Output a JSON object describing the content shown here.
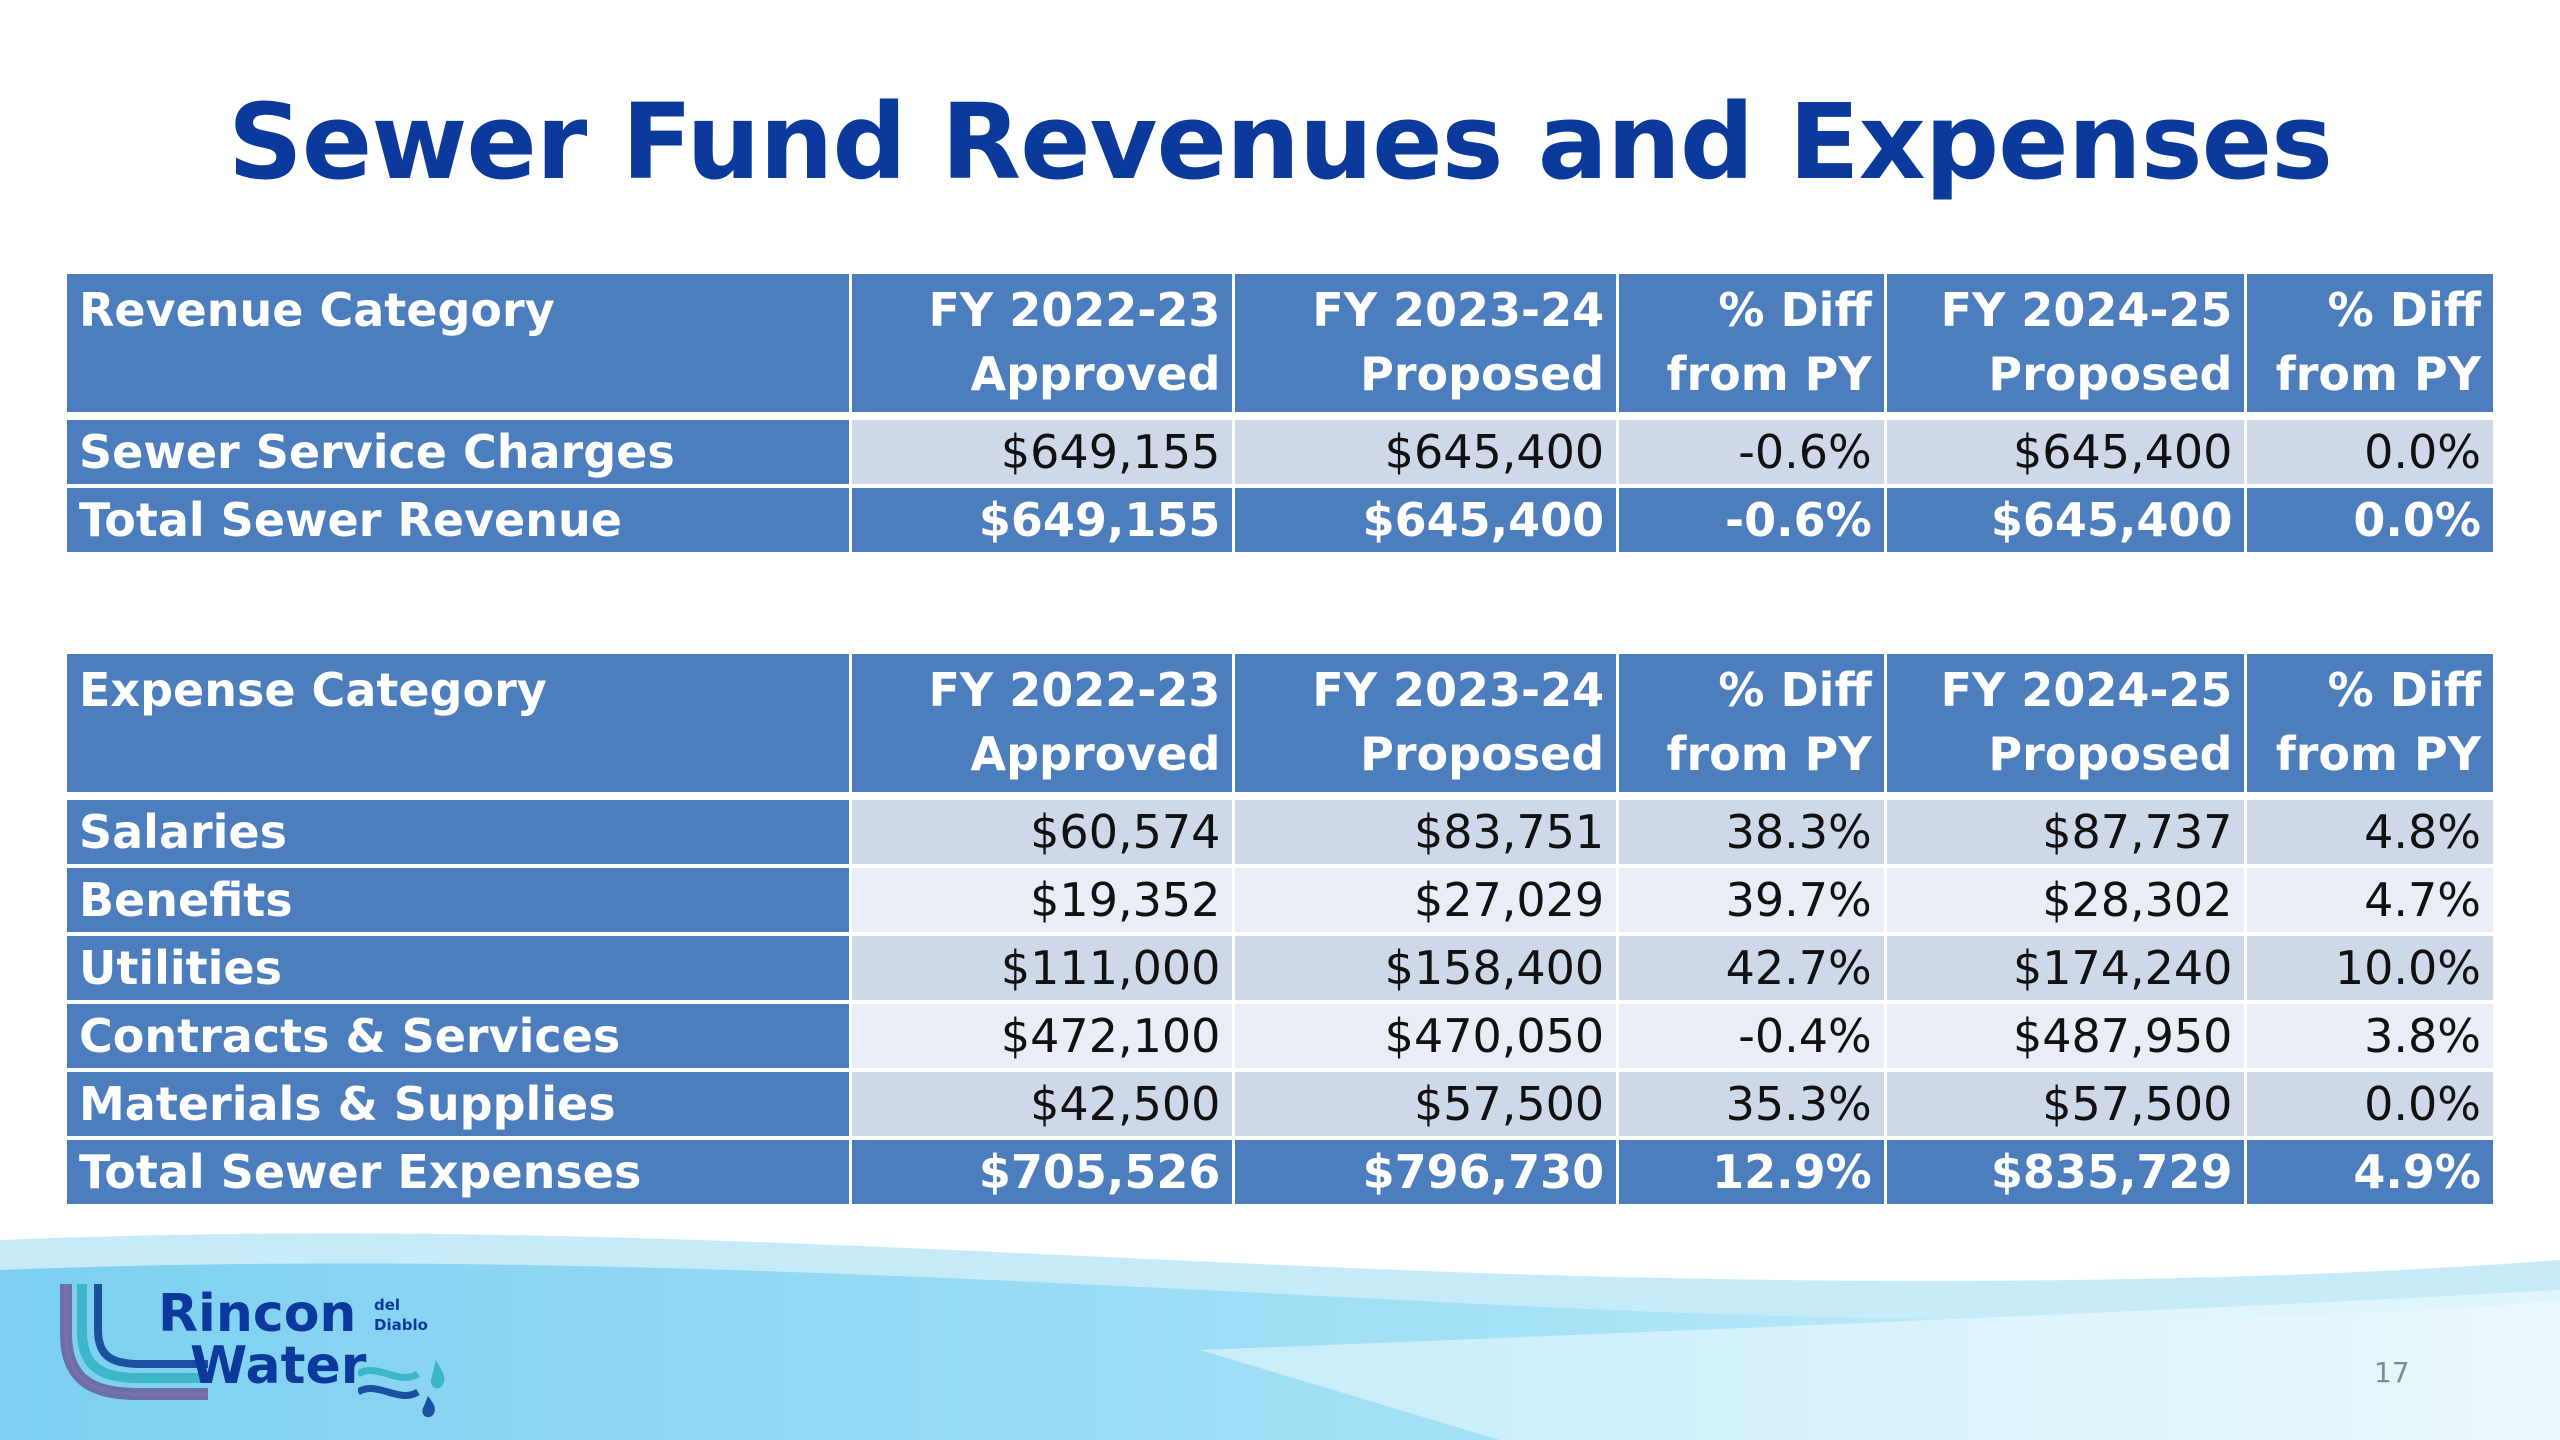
{
  "slide": {
    "title": "Sewer Fund Revenues and Expenses",
    "page_number": "17"
  },
  "revenue_table": {
    "headers": [
      [
        "Revenue Category",
        ""
      ],
      [
        "FY 2022-23",
        "Approved"
      ],
      [
        "FY 2023-24",
        "Proposed"
      ],
      [
        "% Diff",
        "from PY"
      ],
      [
        "FY 2024-25",
        "Proposed"
      ],
      [
        "% Diff",
        "from PY"
      ]
    ],
    "rows": [
      [
        "Sewer Service Charges",
        "$649,155",
        "$645,400",
        "-0.6%",
        "$645,400",
        "0.0%"
      ]
    ],
    "total": [
      "Total Sewer Revenue",
      "$649,155",
      "$645,400",
      "-0.6%",
      "$645,400",
      "0.0%"
    ]
  },
  "expense_table": {
    "headers": [
      [
        "Expense Category",
        ""
      ],
      [
        "FY 2022-23",
        "Approved"
      ],
      [
        "FY 2023-24",
        "Proposed"
      ],
      [
        "% Diff",
        "from PY"
      ],
      [
        "FY 2024-25",
        "Proposed"
      ],
      [
        "% Diff",
        "from PY"
      ]
    ],
    "rows": [
      [
        "Salaries",
        "$60,574",
        "$83,751",
        "38.3%",
        "$87,737",
        "4.8%"
      ],
      [
        "Benefits",
        "$19,352",
        "$27,029",
        "39.7%",
        "$28,302",
        "4.7%"
      ],
      [
        "Utilities",
        "$111,000",
        "$158,400",
        "42.7%",
        "$174,240",
        "10.0%"
      ],
      [
        "Contracts & Services",
        "$472,100",
        "$470,050",
        "-0.4%",
        "$487,950",
        "3.8%"
      ],
      [
        "Materials & Supplies",
        "$42,500",
        "$57,500",
        "35.3%",
        "$57,500",
        "0.0%"
      ]
    ],
    "total": [
      "Total Sewer Expenses",
      "$705,526",
      "$796,730",
      "12.9%",
      "$835,729",
      "4.9%"
    ]
  },
  "logo": {
    "word1": "Rincon",
    "word2": "Water",
    "small1": "del",
    "small2": "Diablo"
  },
  "colors": {
    "title": "#0b3a9c",
    "header_fill": "#4c7dbd",
    "row_band_dark": "#cfd8e9",
    "row_band_light": "#e9edf5",
    "wave_blue": "#8fd9f5"
  }
}
